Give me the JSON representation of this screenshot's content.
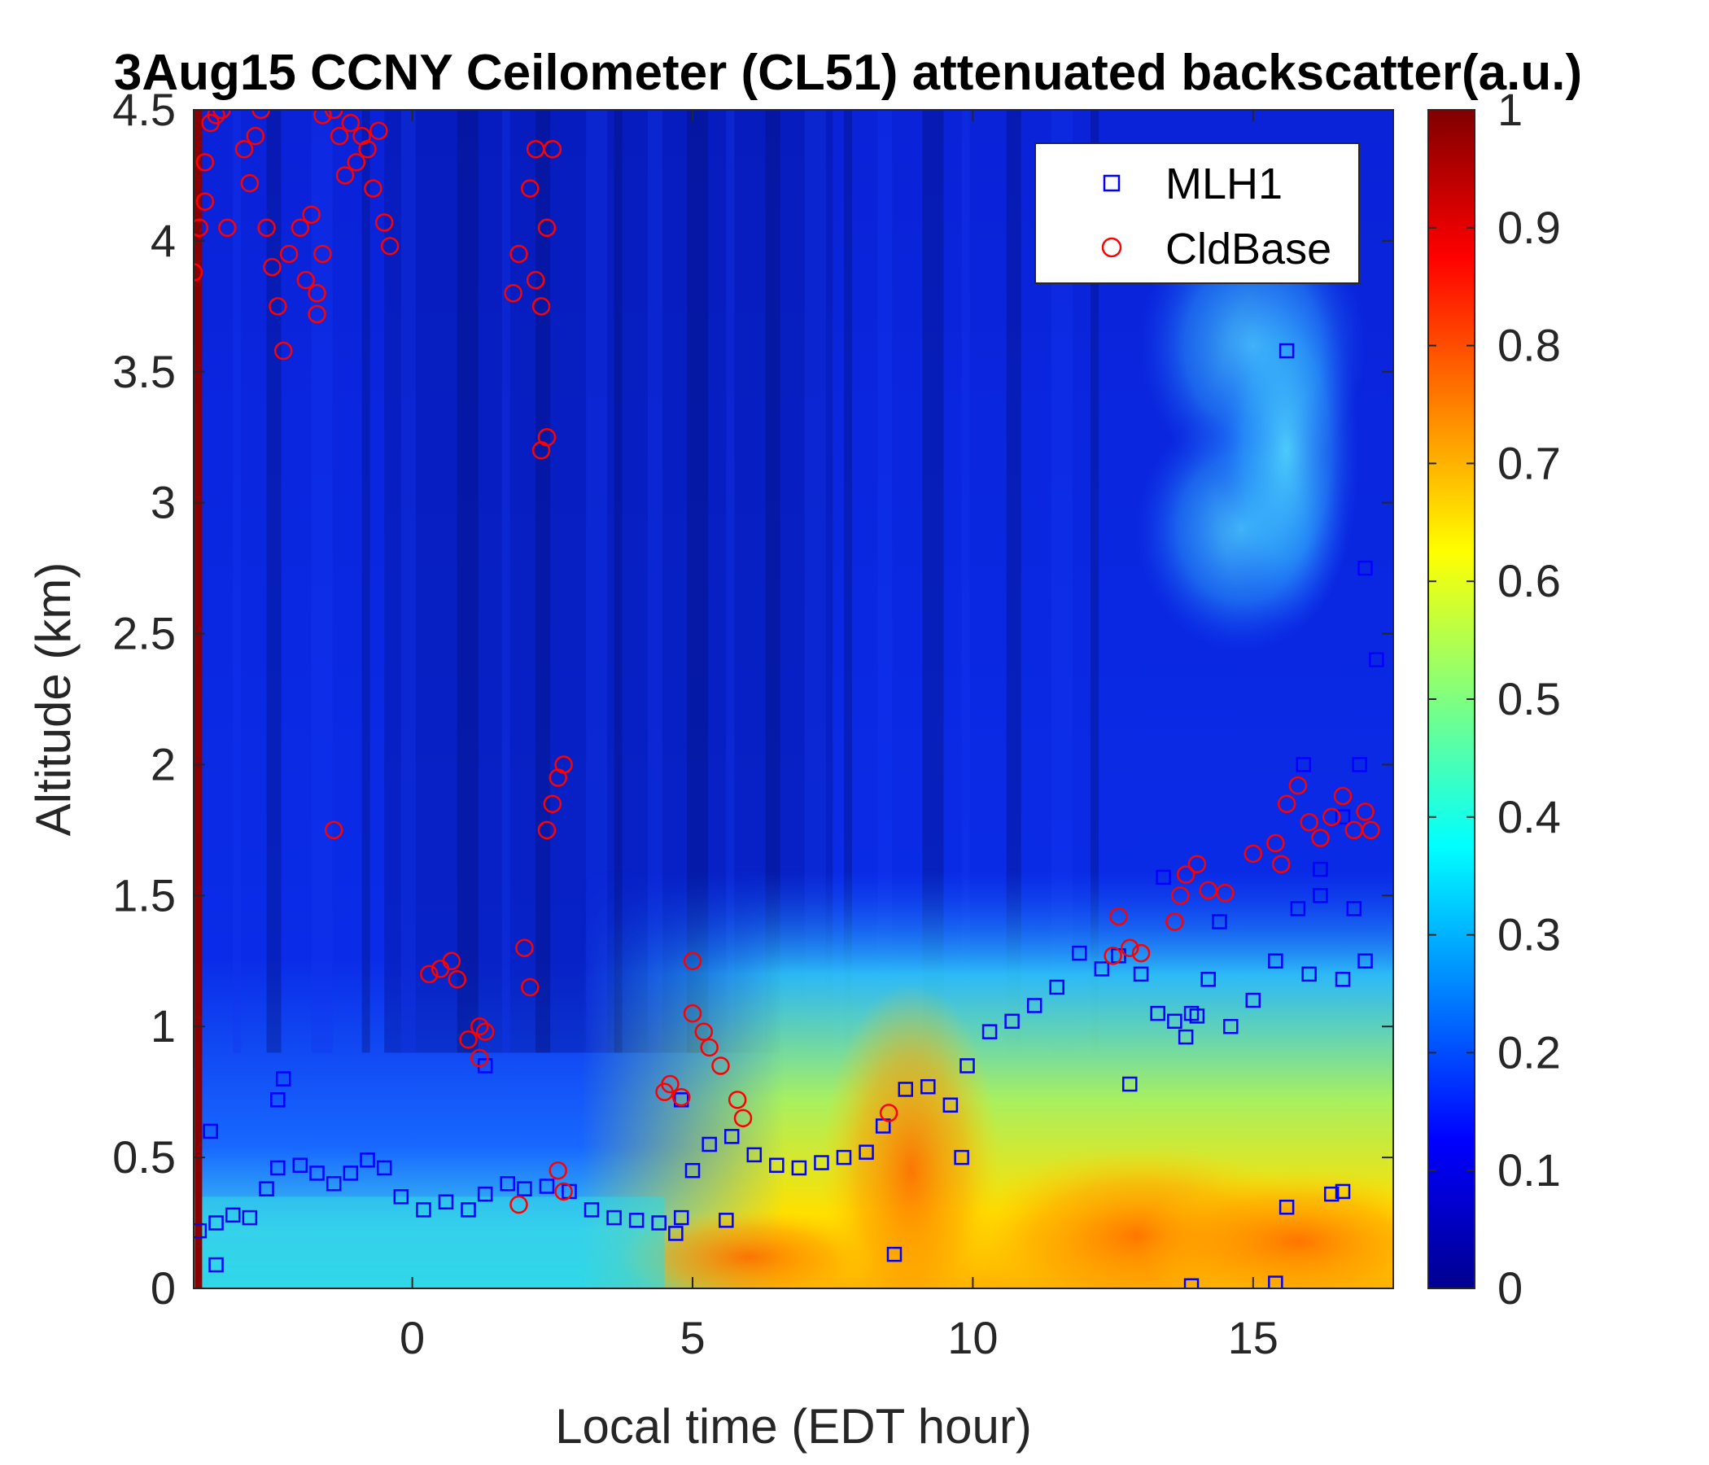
{
  "chart_data": {
    "type": "heatmap",
    "title": "3Aug15 CCNY Ceilometer (CL51) attenuated backscatter(a.u.)",
    "xlabel": "Local time (EDT hour)",
    "ylabel": "Altitude (km)",
    "xlim": [
      -3.9,
      17.5
    ],
    "ylim": [
      0,
      4.5
    ],
    "x_ticks": [
      0,
      5,
      10,
      15
    ],
    "x_tick_labels": [
      "0",
      "5",
      "10",
      "15"
    ],
    "y_ticks": [
      0,
      0.5,
      1,
      1.5,
      2,
      2.5,
      3,
      3.5,
      4,
      4.5
    ],
    "y_tick_labels": [
      "0",
      "0.5",
      "1",
      "1.5",
      "2",
      "2.5",
      "3",
      "3.5",
      "4",
      "4.5"
    ],
    "colorbar": {
      "colormap": "jet",
      "range": [
        0,
        1
      ],
      "ticks": [
        0,
        0.1,
        0.2,
        0.3,
        0.4,
        0.5,
        0.6,
        0.7,
        0.8,
        0.9,
        1
      ],
      "tick_labels": [
        "0",
        "0.1",
        "0.2",
        "0.3",
        "0.4",
        "0.5",
        "0.6",
        "0.7",
        "0.8",
        "0.9",
        "1"
      ]
    },
    "legend": {
      "position": "top-right",
      "entries": [
        {
          "label": "MLH1",
          "marker": "square",
          "color": "#0000ff"
        },
        {
          "label": "CldBase",
          "marker": "circle",
          "color": "#ff0000"
        }
      ]
    },
    "series": [
      {
        "name": "MLH1",
        "marker": "square",
        "color": "#0000ff",
        "points": [
          [
            -3.8,
            0.22
          ],
          [
            -3.5,
            0.25
          ],
          [
            -3.2,
            0.28
          ],
          [
            -2.9,
            0.27
          ],
          [
            -2.6,
            0.38
          ],
          [
            -2.4,
            0.46
          ],
          [
            -2.0,
            0.47
          ],
          [
            -1.7,
            0.44
          ],
          [
            -1.4,
            0.4
          ],
          [
            -1.1,
            0.44
          ],
          [
            -0.8,
            0.49
          ],
          [
            -0.5,
            0.46
          ],
          [
            -0.2,
            0.35
          ],
          [
            0.2,
            0.3
          ],
          [
            0.6,
            0.33
          ],
          [
            1.0,
            0.3
          ],
          [
            1.3,
            0.36
          ],
          [
            1.7,
            0.4
          ],
          [
            2.0,
            0.38
          ],
          [
            2.4,
            0.39
          ],
          [
            2.8,
            0.37
          ],
          [
            3.2,
            0.3
          ],
          [
            3.6,
            0.27
          ],
          [
            4.0,
            0.26
          ],
          [
            4.4,
            0.25
          ],
          [
            4.8,
            0.27
          ],
          [
            5.0,
            0.45
          ],
          [
            5.3,
            0.55
          ],
          [
            5.7,
            0.58
          ],
          [
            6.1,
            0.51
          ],
          [
            6.5,
            0.47
          ],
          [
            6.9,
            0.46
          ],
          [
            7.3,
            0.48
          ],
          [
            7.7,
            0.5
          ],
          [
            8.1,
            0.52
          ],
          [
            8.4,
            0.62
          ],
          [
            8.8,
            0.76
          ],
          [
            9.2,
            0.77
          ],
          [
            9.6,
            0.7
          ],
          [
            9.9,
            0.85
          ],
          [
            10.3,
            0.98
          ],
          [
            10.7,
            1.02
          ],
          [
            11.1,
            1.08
          ],
          [
            11.5,
            1.15
          ],
          [
            11.9,
            1.28
          ],
          [
            12.3,
            1.22
          ],
          [
            12.6,
            1.27
          ],
          [
            13.0,
            1.2
          ],
          [
            13.3,
            1.05
          ],
          [
            13.6,
            1.02
          ],
          [
            13.9,
            1.05
          ],
          [
            14.2,
            1.18
          ],
          [
            14.6,
            1.0
          ],
          [
            15.0,
            1.1
          ],
          [
            15.4,
            1.25
          ],
          [
            15.8,
            1.45
          ],
          [
            16.2,
            1.6
          ],
          [
            16.6,
            1.8
          ],
          [
            16.9,
            2.0
          ],
          [
            17.2,
            2.4
          ],
          [
            -3.6,
            0.6
          ],
          [
            -3.5,
            0.09
          ],
          [
            -2.4,
            0.72
          ],
          [
            -2.3,
            0.8
          ],
          [
            1.3,
            0.85
          ],
          [
            4.8,
            0.72
          ],
          [
            5.6,
            0.26
          ],
          [
            4.7,
            0.21
          ],
          [
            8.6,
            0.13
          ],
          [
            9.8,
            0.5
          ],
          [
            12.8,
            0.78
          ],
          [
            13.4,
            1.57
          ],
          [
            13.9,
            0.01
          ],
          [
            14.0,
            1.04
          ],
          [
            13.8,
            0.96
          ],
          [
            15.4,
            0.02
          ],
          [
            15.6,
            0.31
          ],
          [
            16.4,
            0.36
          ],
          [
            16.6,
            0.37
          ],
          [
            16.8,
            1.45
          ],
          [
            17.0,
            1.25
          ],
          [
            16.0,
            1.2
          ],
          [
            16.6,
            1.18
          ],
          [
            17.0,
            2.75
          ],
          [
            15.6,
            3.58
          ],
          [
            16.2,
            1.5
          ],
          [
            15.9,
            2.0
          ],
          [
            14.4,
            1.4
          ]
        ]
      },
      {
        "name": "CldBase",
        "marker": "circle",
        "color": "#ff0000",
        "points": [
          [
            -3.9,
            3.88
          ],
          [
            -3.8,
            4.05
          ],
          [
            -3.7,
            4.15
          ],
          [
            -3.7,
            4.3
          ],
          [
            -3.6,
            4.45
          ],
          [
            -3.5,
            4.48
          ],
          [
            -3.4,
            4.5
          ],
          [
            -3.3,
            4.05
          ],
          [
            -3.0,
            4.35
          ],
          [
            -2.9,
            4.22
          ],
          [
            -2.8,
            4.4
          ],
          [
            -2.7,
            4.5
          ],
          [
            -2.6,
            4.05
          ],
          [
            -2.5,
            3.9
          ],
          [
            -2.4,
            3.75
          ],
          [
            -2.3,
            3.58
          ],
          [
            -2.2,
            3.95
          ],
          [
            -2.0,
            4.05
          ],
          [
            -1.9,
            3.85
          ],
          [
            -1.8,
            4.1
          ],
          [
            -1.7,
            3.8
          ],
          [
            -1.6,
            3.95
          ],
          [
            -1.7,
            3.72
          ],
          [
            -1.6,
            4.48
          ],
          [
            -1.4,
            4.5
          ],
          [
            -1.3,
            4.4
          ],
          [
            -1.2,
            4.25
          ],
          [
            -1.1,
            4.45
          ],
          [
            -1.0,
            4.3
          ],
          [
            -0.9,
            4.4
          ],
          [
            -0.8,
            4.35
          ],
          [
            -0.7,
            4.2
          ],
          [
            -0.6,
            4.42
          ],
          [
            -0.5,
            4.07
          ],
          [
            -0.4,
            3.98
          ],
          [
            -1.4,
            1.75
          ],
          [
            0.3,
            1.2
          ],
          [
            0.5,
            1.22
          ],
          [
            0.7,
            1.25
          ],
          [
            0.8,
            1.18
          ],
          [
            1.0,
            0.95
          ],
          [
            1.2,
            1.0
          ],
          [
            1.3,
            0.98
          ],
          [
            1.2,
            0.88
          ],
          [
            1.8,
            3.8
          ],
          [
            1.9,
            3.95
          ],
          [
            2.0,
            1.3
          ],
          [
            2.1,
            1.15
          ],
          [
            2.2,
            3.85
          ],
          [
            2.1,
            4.2
          ],
          [
            2.2,
            4.35
          ],
          [
            2.3,
            3.75
          ],
          [
            2.4,
            4.05
          ],
          [
            2.3,
            3.2
          ],
          [
            2.4,
            3.25
          ],
          [
            2.4,
            1.75
          ],
          [
            2.5,
            1.85
          ],
          [
            2.6,
            1.95
          ],
          [
            2.7,
            2.0
          ],
          [
            2.5,
            4.35
          ],
          [
            2.6,
            0.45
          ],
          [
            2.7,
            0.37
          ],
          [
            1.9,
            0.32
          ],
          [
            4.5,
            0.75
          ],
          [
            4.6,
            0.78
          ],
          [
            4.8,
            0.73
          ],
          [
            5.0,
            1.25
          ],
          [
            5.0,
            1.05
          ],
          [
            5.2,
            0.98
          ],
          [
            5.3,
            0.92
          ],
          [
            5.5,
            0.85
          ],
          [
            5.8,
            0.72
          ],
          [
            5.9,
            0.65
          ],
          [
            8.5,
            0.67
          ],
          [
            12.5,
            1.27
          ],
          [
            12.6,
            1.42
          ],
          [
            12.8,
            1.3
          ],
          [
            13.0,
            1.28
          ],
          [
            13.6,
            1.4
          ],
          [
            13.7,
            1.5
          ],
          [
            13.8,
            1.58
          ],
          [
            14.0,
            1.62
          ],
          [
            14.2,
            1.52
          ],
          [
            14.5,
            1.51
          ],
          [
            15.0,
            1.66
          ],
          [
            15.4,
            1.7
          ],
          [
            15.5,
            1.62
          ],
          [
            15.6,
            1.85
          ],
          [
            15.8,
            1.92
          ],
          [
            16.0,
            1.78
          ],
          [
            16.2,
            1.72
          ],
          [
            16.4,
            1.8
          ],
          [
            16.6,
            1.88
          ],
          [
            16.8,
            1.75
          ],
          [
            17.0,
            1.82
          ],
          [
            17.1,
            1.75
          ]
        ]
      }
    ]
  }
}
